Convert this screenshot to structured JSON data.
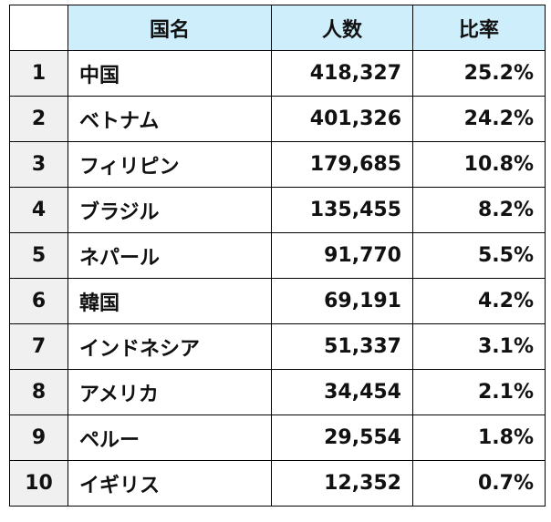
{
  "table": {
    "headers": [
      "",
      "国名",
      "人数",
      "比率"
    ],
    "rows": [
      {
        "rank": "1",
        "country": "中国",
        "count": "418,327",
        "ratio": "25.2%"
      },
      {
        "rank": "2",
        "country": "ベトナム",
        "count": "401,326",
        "ratio": "24.2%"
      },
      {
        "rank": "3",
        "country": "フィリピン",
        "count": "179,685",
        "ratio": "10.8%"
      },
      {
        "rank": "4",
        "country": "ブラジル",
        "count": "135,455",
        "ratio": "8.2%"
      },
      {
        "rank": "5",
        "country": "ネパール",
        "count": "91,770",
        "ratio": "5.5%"
      },
      {
        "rank": "6",
        "country": "韓国",
        "count": "69,191",
        "ratio": "4.2%"
      },
      {
        "rank": "7",
        "country": "インドネシア",
        "count": "51,337",
        "ratio": "3.1%"
      },
      {
        "rank": "8",
        "country": "アメリカ",
        "count": "34,454",
        "ratio": "2.1%"
      },
      {
        "rank": "9",
        "country": "ペルー",
        "count": "29,554",
        "ratio": "1.8%"
      },
      {
        "rank": "10",
        "country": "イギリス",
        "count": "12,352",
        "ratio": "0.7%"
      }
    ]
  },
  "colors": {
    "header_bg": "#cdeefa",
    "rank_bg": "#f0f0f0",
    "border": "#000000"
  }
}
